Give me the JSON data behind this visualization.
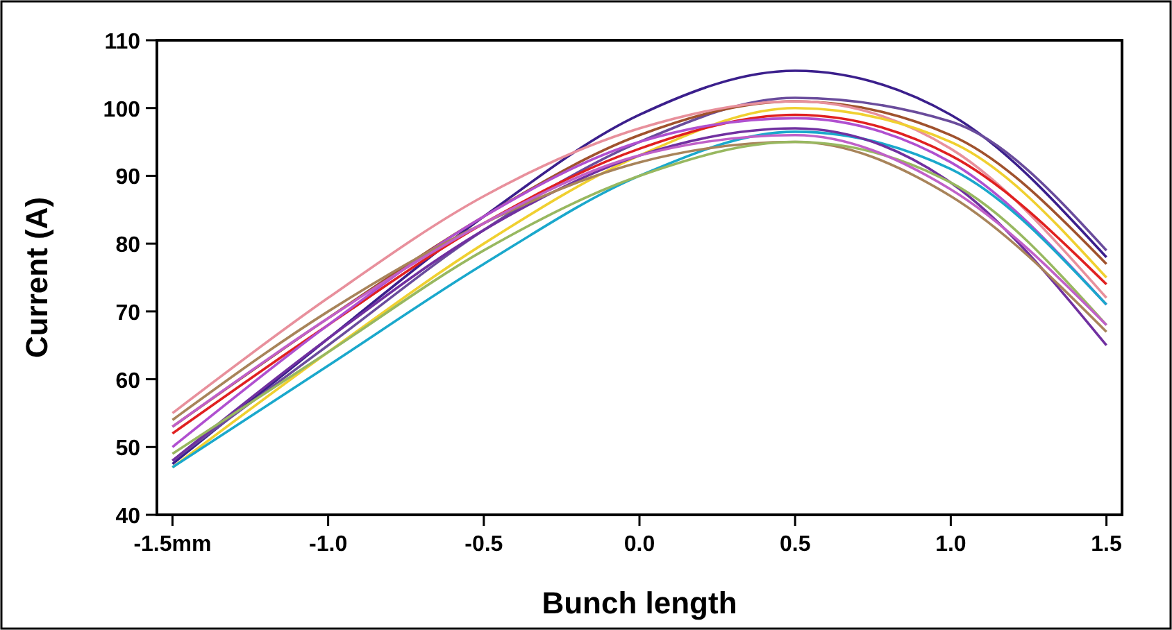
{
  "chart_data": {
    "type": "line",
    "xlabel": "Bunch length",
    "ylabel": "Current (A)",
    "x": [
      -1.5,
      -1,
      -0.5,
      0,
      0.5,
      1,
      1.5
    ],
    "series": [
      {
        "color": "#3b1f8c",
        "values": [
          47.5,
          66,
          84,
          99,
          105.5,
          99,
          78
        ]
      },
      {
        "color": "#6a4c9c",
        "values": [
          48,
          65,
          82,
          95,
          101.5,
          98,
          79
        ]
      },
      {
        "color": "#a0522d",
        "values": [
          53,
          69,
          84,
          96,
          101,
          96,
          77
        ]
      },
      {
        "color": "#e8909c",
        "values": [
          55,
          72,
          87,
          97,
          101,
          94,
          72
        ]
      },
      {
        "color": "#f0d030",
        "values": [
          47,
          64,
          80,
          93,
          100,
          95,
          75
        ]
      },
      {
        "color": "#e02020",
        "values": [
          52,
          68,
          83,
          94,
          99,
          93,
          74
        ]
      },
      {
        "color": "#b050d0",
        "values": [
          50,
          68,
          84,
          95,
          98.5,
          92,
          71
        ]
      },
      {
        "color": "#1aa8cc",
        "values": [
          47,
          62,
          77,
          90,
          96.5,
          91,
          71
        ]
      },
      {
        "color": "#7030a0",
        "values": [
          48,
          66,
          82,
          93,
          97,
          89,
          65
        ]
      },
      {
        "color": "#a8845a",
        "values": [
          54,
          70,
          83,
          92,
          95,
          87,
          67
        ]
      },
      {
        "color": "#98b860",
        "values": [
          49,
          64,
          79,
          90,
          95,
          89,
          68
        ]
      },
      {
        "color": "#c060c8",
        "values": [
          53,
          69,
          83,
          93,
          96,
          88,
          68
        ]
      }
    ],
    "xlim": [
      -1.55,
      1.55
    ],
    "ylim": [
      40,
      110
    ],
    "xticks": [
      {
        "value": -1.5,
        "label": "-1.5mm"
      },
      {
        "value": -1,
        "label": "-1.0"
      },
      {
        "value": -0.5,
        "label": "-0.5"
      },
      {
        "value": 0,
        "label": "0.0"
      },
      {
        "value": 0.5,
        "label": "0.5"
      },
      {
        "value": 1,
        "label": "1.0"
      },
      {
        "value": 1.5,
        "label": "1.5"
      }
    ],
    "yticks": [
      40,
      50,
      60,
      70,
      80,
      90,
      100,
      110
    ]
  }
}
